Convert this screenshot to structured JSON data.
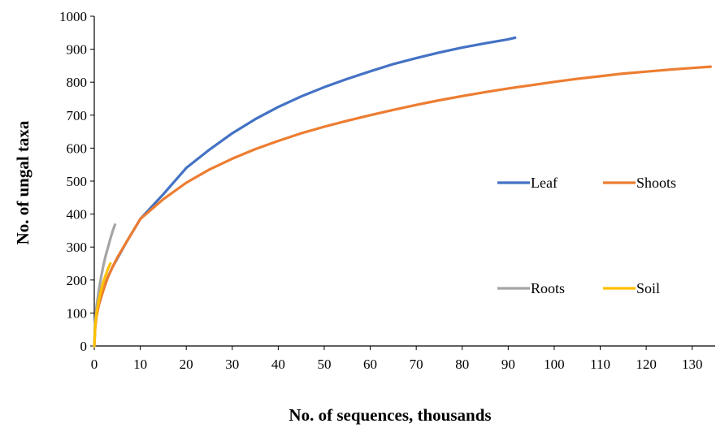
{
  "chart_data": {
    "type": "line",
    "title": "",
    "xlabel": "No. of sequences, thousands",
    "ylabel": "No. of ungal taxa",
    "xlim": [
      0,
      135
    ],
    "ylim": [
      0,
      1000
    ],
    "x_ticks": [
      0,
      10,
      20,
      30,
      40,
      50,
      60,
      70,
      80,
      90,
      100,
      110,
      120,
      130
    ],
    "y_ticks": [
      0,
      100,
      200,
      300,
      400,
      500,
      600,
      700,
      800,
      900,
      1000
    ],
    "grid": false,
    "legend_placement": "right",
    "series": [
      {
        "name": "Leaf",
        "color": "#4472C4",
        "points": [
          [
            0,
            0
          ],
          [
            0.2,
            60
          ],
          [
            0.5,
            95
          ],
          [
            1,
            130
          ],
          [
            2,
            175
          ],
          [
            3,
            210
          ],
          [
            4,
            240
          ],
          [
            5,
            265
          ],
          [
            7,
            315
          ],
          [
            10,
            385
          ],
          [
            15,
            460
          ],
          [
            20,
            540
          ],
          [
            25,
            595
          ],
          [
            30,
            645
          ],
          [
            35,
            688
          ],
          [
            40,
            725
          ],
          [
            45,
            757
          ],
          [
            50,
            785
          ],
          [
            55,
            810
          ],
          [
            60,
            833
          ],
          [
            65,
            855
          ],
          [
            70,
            873
          ],
          [
            75,
            890
          ],
          [
            80,
            905
          ],
          [
            85,
            918
          ],
          [
            90,
            930
          ],
          [
            91.5,
            935
          ]
        ]
      },
      {
        "name": "Shoots",
        "color": "#ED7D31",
        "points": [
          [
            0,
            0
          ],
          [
            0.2,
            55
          ],
          [
            0.5,
            90
          ],
          [
            1,
            125
          ],
          [
            2,
            170
          ],
          [
            3,
            210
          ],
          [
            4,
            240
          ],
          [
            5,
            268
          ],
          [
            7,
            315
          ],
          [
            10,
            385
          ],
          [
            15,
            445
          ],
          [
            20,
            495
          ],
          [
            25,
            535
          ],
          [
            30,
            568
          ],
          [
            35,
            597
          ],
          [
            40,
            622
          ],
          [
            45,
            645
          ],
          [
            50,
            665
          ],
          [
            55,
            683
          ],
          [
            60,
            700
          ],
          [
            65,
            716
          ],
          [
            70,
            731
          ],
          [
            75,
            745
          ],
          [
            80,
            758
          ],
          [
            85,
            770
          ],
          [
            90,
            781
          ],
          [
            95,
            791
          ],
          [
            100,
            801
          ],
          [
            105,
            810
          ],
          [
            110,
            818
          ],
          [
            115,
            826
          ],
          [
            120,
            832
          ],
          [
            125,
            838
          ],
          [
            130,
            843
          ],
          [
            134,
            847
          ]
        ]
      },
      {
        "name": "Roots",
        "color": "#A5A5A5",
        "points": [
          [
            0,
            0
          ],
          [
            0.2,
            70
          ],
          [
            0.5,
            120
          ],
          [
            1,
            170
          ],
          [
            1.5,
            210
          ],
          [
            2,
            245
          ],
          [
            2.5,
            275
          ],
          [
            3,
            300
          ],
          [
            3.5,
            325
          ],
          [
            4,
            348
          ],
          [
            4.5,
            368
          ]
        ]
      },
      {
        "name": "Soil",
        "color": "#FFC000",
        "points": [
          [
            0,
            0
          ],
          [
            0.2,
            60
          ],
          [
            0.5,
            100
          ],
          [
            1,
            140
          ],
          [
            1.5,
            170
          ],
          [
            2,
            195
          ],
          [
            2.5,
            215
          ],
          [
            3,
            235
          ],
          [
            3.5,
            250
          ]
        ]
      }
    ]
  }
}
